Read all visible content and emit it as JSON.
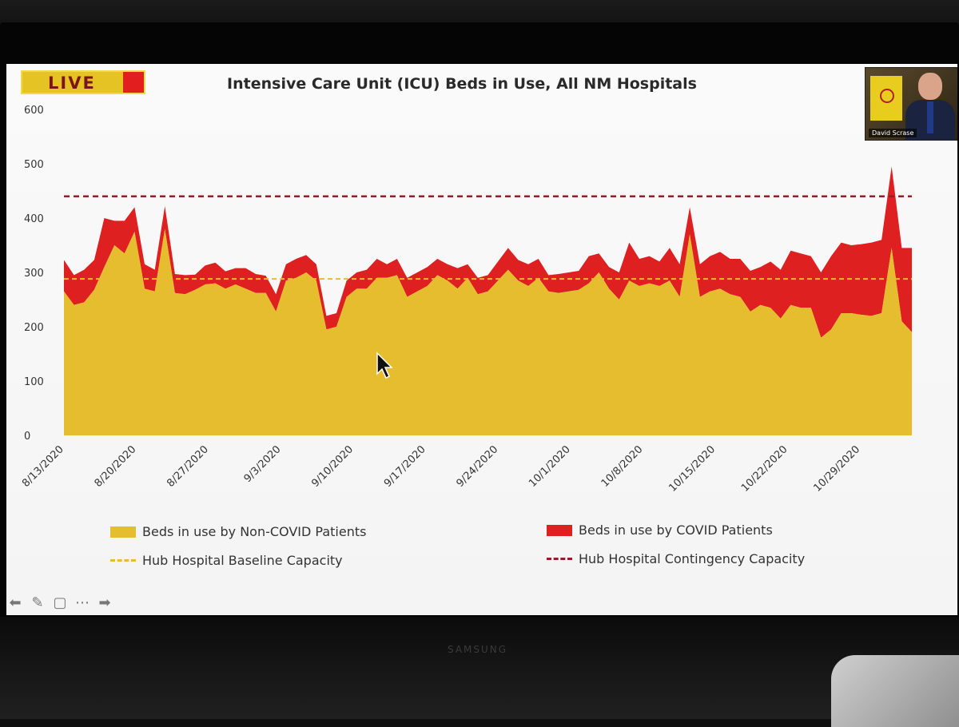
{
  "live_badge": "LIVE",
  "webcam": {
    "name": "David Scrase"
  },
  "brand": "SAMSUNG",
  "toolbar": {
    "icons": [
      "back-arrow-icon",
      "pen-icon",
      "subtitles-icon",
      "more-icon",
      "forward-arrow-icon"
    ]
  },
  "chart_data": {
    "type": "area",
    "title": "Intensive Care Unit (ICU) Beds in Use, All NM Hospitals",
    "ylim": [
      0,
      600
    ],
    "yticks": [
      0,
      100,
      200,
      300,
      400,
      500,
      600
    ],
    "xticklabels": [
      "8/13/2020",
      "8/20/2020",
      "8/27/2020",
      "9/3/2020",
      "9/10/2020",
      "9/17/2020",
      "9/24/2020",
      "10/1/2020",
      "10/8/2020",
      "10/15/2020",
      "10/22/2020",
      "10/29/2020"
    ],
    "x_start": "2020-08-13",
    "x_end": "2020-11-03",
    "series": [
      {
        "name": "Beds in use by Non-COVID Patients",
        "color": "#e6bd2f",
        "values": [
          265,
          240,
          245,
          268,
          310,
          350,
          335,
          375,
          270,
          265,
          380,
          262,
          260,
          268,
          278,
          280,
          270,
          278,
          270,
          262,
          262,
          228,
          285,
          290,
          300,
          285,
          195,
          200,
          255,
          270,
          270,
          290,
          290,
          295,
          255,
          265,
          275,
          295,
          285,
          270,
          290,
          260,
          265,
          285,
          305,
          285,
          275,
          290,
          265,
          262,
          265,
          268,
          280,
          300,
          270,
          250,
          285,
          275,
          280,
          275,
          285,
          255,
          370,
          255,
          265,
          270,
          260,
          255,
          228,
          240,
          235,
          215,
          240,
          235,
          235,
          180,
          195,
          225,
          225,
          222,
          220,
          225,
          345,
          210,
          190
        ]
      },
      {
        "name": "Beds in use by COVID Patients",
        "color": "#df2020",
        "values": [
          58,
          55,
          60,
          55,
          90,
          45,
          60,
          45,
          45,
          40,
          42,
          35,
          35,
          28,
          35,
          38,
          32,
          30,
          38,
          35,
          32,
          32,
          30,
          35,
          32,
          30,
          25,
          25,
          30,
          30,
          35,
          35,
          25,
          30,
          35,
          35,
          35,
          30,
          30,
          38,
          25,
          30,
          30,
          35,
          40,
          38,
          40,
          35,
          30,
          35,
          35,
          35,
          50,
          35,
          40,
          50,
          70,
          50,
          50,
          45,
          60,
          60,
          50,
          60,
          65,
          68,
          65,
          70,
          75,
          70,
          85,
          90,
          100,
          100,
          95,
          120,
          135,
          130,
          125,
          130,
          135,
          135,
          150,
          135,
          155
        ]
      },
      {
        "name": "Hub Hospital Baseline Capacity",
        "color": "#e6bd2f",
        "value": 288
      },
      {
        "name": "Hub Hospital Contingency Capacity",
        "color": "#9b1b2a",
        "value": 440
      }
    ]
  }
}
